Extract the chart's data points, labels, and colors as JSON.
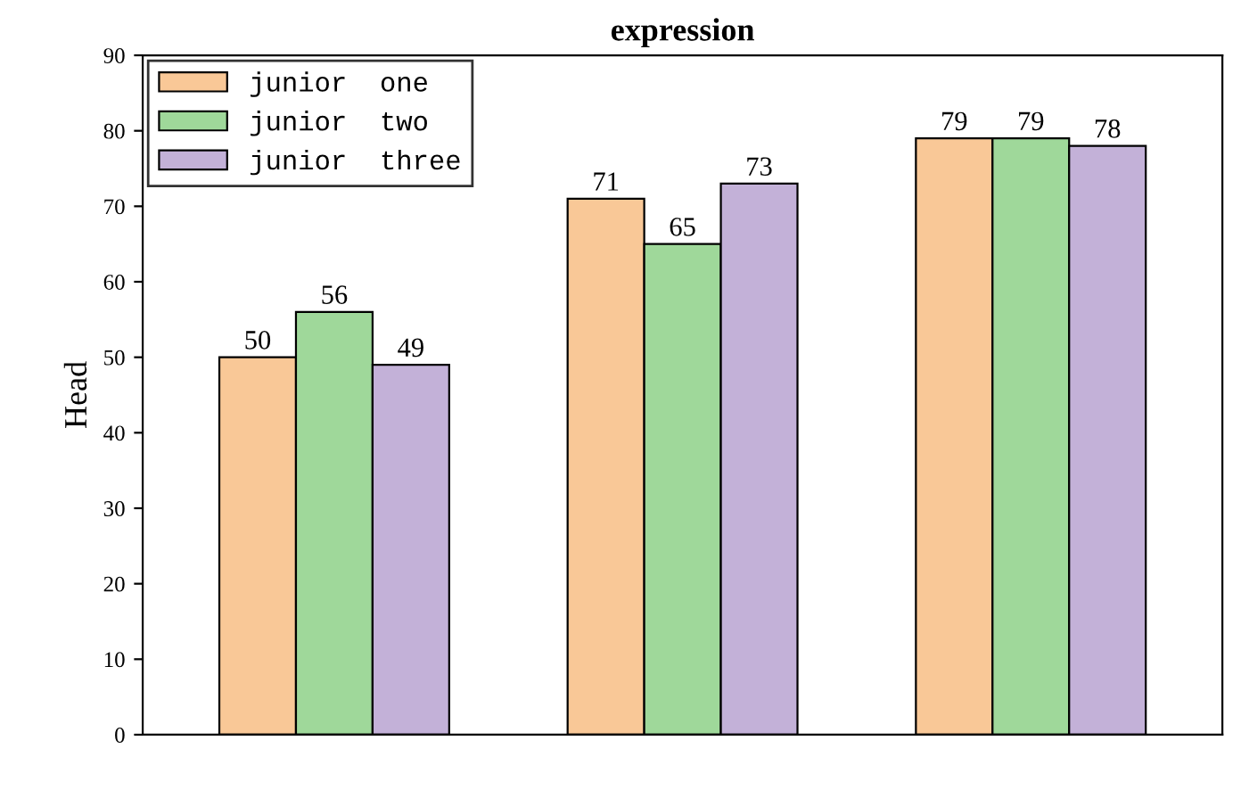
{
  "chart_data": {
    "type": "bar",
    "title": "expression",
    "ylabel": "Head",
    "categories": [
      null,
      null,
      null
    ],
    "series": [
      {
        "name": "junior  one",
        "color": "#f9c897",
        "values": [
          50,
          71,
          79
        ]
      },
      {
        "name": "junior  two",
        "color": "#9fd89a",
        "values": [
          56,
          65,
          79
        ]
      },
      {
        "name": "junior  three",
        "color": "#c3b1d8",
        "values": [
          49,
          73,
          78
        ]
      }
    ],
    "ylim": [
      0,
      90
    ],
    "yticks": [
      0,
      10,
      20,
      30,
      40,
      50,
      60,
      70,
      80,
      90
    ],
    "data_labels": true,
    "legend": "top left",
    "grid": false
  }
}
